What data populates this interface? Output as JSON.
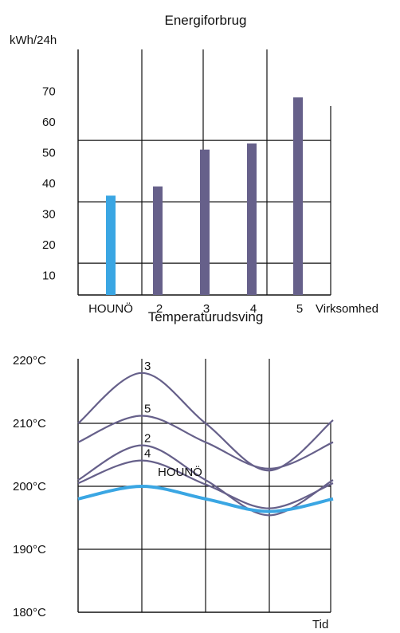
{
  "colors": {
    "highlight": "#3aa6e3",
    "series": "#66608a",
    "frame": "#111111"
  },
  "chart_data": [
    {
      "type": "bar",
      "title": "Energiforbrug",
      "ylabel": "kWh/24h",
      "xlabel": "Virksomhed",
      "ylim": [
        0,
        75
      ],
      "yticks": [
        10,
        20,
        30,
        40,
        50,
        60,
        70
      ],
      "categories": [
        "HOUNÖ",
        "2",
        "3",
        "4",
        "5"
      ],
      "values": [
        36,
        39,
        51,
        53,
        68
      ],
      "highlight": "HOUNÖ",
      "grid": "horizontal lines at 14, 34, 54"
    },
    {
      "type": "line",
      "title": "Temperaturudsving",
      "xlabel": "Tid",
      "ylim": [
        180,
        220
      ],
      "yticks": [
        "180°C",
        "190°C",
        "200°C",
        "210°C",
        "220°C"
      ],
      "x": [
        0,
        1,
        2,
        3,
        4
      ],
      "series": [
        {
          "name": "3",
          "values": [
            210,
            218,
            210,
            202.5,
            210.5
          ]
        },
        {
          "name": "5",
          "values": [
            207,
            211.2,
            207,
            202.8,
            207
          ]
        },
        {
          "name": "2",
          "values": [
            201,
            206.5,
            201,
            195.4,
            201
          ]
        },
        {
          "name": "4",
          "values": [
            200.5,
            204.1,
            200.3,
            196.5,
            200.5
          ]
        },
        {
          "name": "HOUNÖ",
          "values": [
            198,
            200,
            198,
            196,
            198
          ],
          "highlight": true
        }
      ]
    }
  ]
}
